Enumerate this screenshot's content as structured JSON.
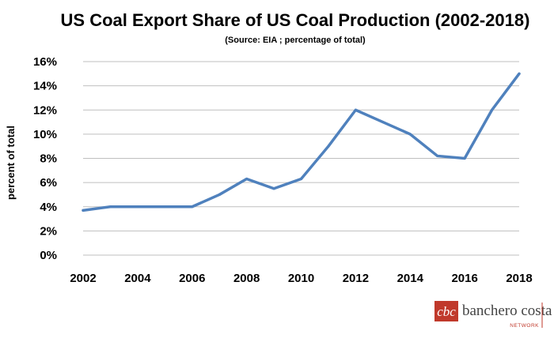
{
  "chart_data": {
    "type": "line",
    "title": "US Coal Export Share of US Coal Production (2002-2018)",
    "subtitle": "(Source: EIA ; percentage of total)",
    "ylabel": "percent of total",
    "xlabel": "",
    "x": [
      2002,
      2003,
      2004,
      2005,
      2006,
      2007,
      2008,
      2009,
      2010,
      2011,
      2012,
      2013,
      2014,
      2015,
      2016,
      2017,
      2018
    ],
    "series": [
      {
        "values": [
          3.7,
          4.0,
          4.0,
          4.0,
          4.0,
          5.0,
          6.3,
          5.5,
          6.3,
          9.0,
          12.0,
          11.0,
          10.0,
          8.2,
          8.0,
          12.0,
          15.0
        ]
      }
    ],
    "xticks": [
      "2002",
      "2004",
      "2006",
      "2008",
      "2010",
      "2012",
      "2014",
      "2016",
      "2018"
    ],
    "yticks": [
      "0%",
      "2%",
      "4%",
      "6%",
      "8%",
      "10%",
      "12%",
      "14%",
      "16%"
    ],
    "ylim": [
      0,
      16
    ],
    "xlim": [
      2002,
      2018
    ],
    "grid": true,
    "line_color": "#4f81bd",
    "grid_color": "#bfbfbf"
  },
  "brand": {
    "logo_text": "cbc",
    "name": "banchero costa",
    "tagline": "NETWORK",
    "color": "#c0392b"
  }
}
